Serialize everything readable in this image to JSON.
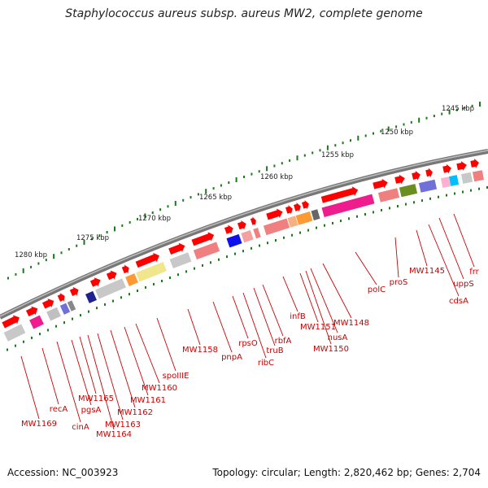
{
  "title": "Staphylococcus aureus subsp. aureus MW2, complete genome",
  "footer": {
    "accession": "Accession: NC_003923",
    "topology": "Topology: circular; Length: 2,820,462 bp; Genes: 2,704"
  },
  "colors": {
    "backbone": "#808080",
    "tick": "#1a7a1a",
    "gene_forward": "#ff0000",
    "gene_label": "#cc0000",
    "ruler_label": "#222222"
  },
  "ruler": [
    {
      "label": "1245 kbp",
      "pos": 1245
    },
    {
      "label": "1250 kbp",
      "pos": 1250
    },
    {
      "label": "1255 kbp",
      "pos": 1255
    },
    {
      "label": "1260 kbp",
      "pos": 1260
    },
    {
      "label": "1265 kbp",
      "pos": 1265
    },
    {
      "label": "1270 kbp",
      "pos": 1270
    },
    {
      "label": "1275 kbp",
      "pos": 1275
    },
    {
      "label": "1280 kbp",
      "pos": 1280
    }
  ],
  "gene_labels": [
    {
      "text": "frr"
    },
    {
      "text": "uppS"
    },
    {
      "text": "cdsA"
    },
    {
      "text": "MW1145"
    },
    {
      "text": "proS"
    },
    {
      "text": "polC"
    },
    {
      "text": "MW1148"
    },
    {
      "text": "nusA"
    },
    {
      "text": "MW1150"
    },
    {
      "text": "MW1151"
    },
    {
      "text": "infB"
    },
    {
      "text": "rbfA"
    },
    {
      "text": "truB"
    },
    {
      "text": "ribC"
    },
    {
      "text": "rpsO"
    },
    {
      "text": "pnpA"
    },
    {
      "text": "MW1158"
    },
    {
      "text": "spoIIIE"
    },
    {
      "text": "MW1160"
    },
    {
      "text": "MW1161"
    },
    {
      "text": "MW1162"
    },
    {
      "text": "MW1163"
    },
    {
      "text": "MW1164"
    },
    {
      "text": "MW1165"
    },
    {
      "text": "pgsA"
    },
    {
      "text": "cinA"
    },
    {
      "text": "recA"
    },
    {
      "text": "MW1169"
    }
  ]
}
